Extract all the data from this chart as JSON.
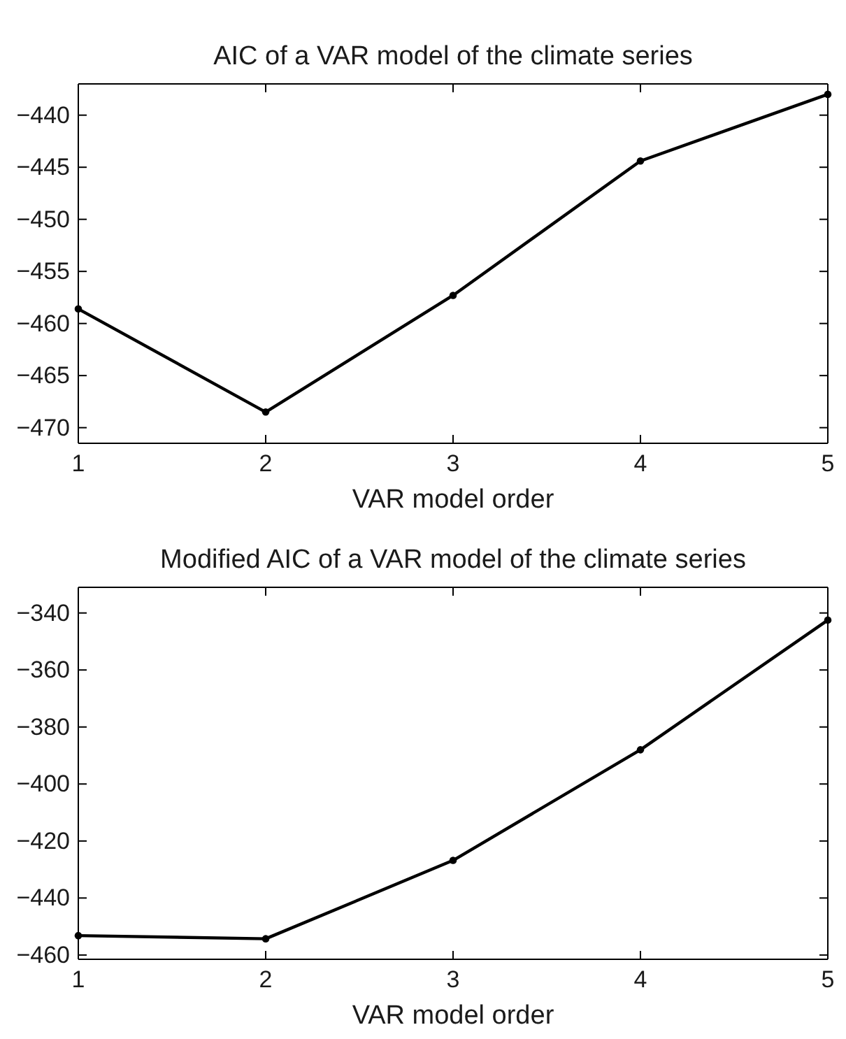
{
  "chart_data": [
    {
      "type": "line",
      "title": "AIC of a VAR model of the climate series",
      "xlabel": "VAR model order",
      "x": [
        1,
        2,
        3,
        4,
        5
      ],
      "xlim": [
        1,
        5
      ],
      "xticks": [
        1,
        2,
        3,
        4,
        5
      ],
      "ylim": [
        -471.5,
        -437
      ],
      "yticks": [
        -470,
        -465,
        -460,
        -455,
        -450,
        -445,
        -440
      ],
      "grid": false,
      "marker": "circle",
      "line_style": "solid",
      "series": [
        {
          "color": "#000000",
          "values": [
            -458.6,
            -468.5,
            -457.3,
            -444.4,
            -438.0
          ]
        }
      ]
    },
    {
      "type": "line",
      "title": "Modified AIC of a VAR model of the climate series",
      "xlabel": "VAR model order",
      "x": [
        1,
        2,
        3,
        4,
        5
      ],
      "xlim": [
        1,
        5
      ],
      "xticks": [
        1,
        2,
        3,
        4,
        5
      ],
      "ylim": [
        -461.5,
        -331
      ],
      "yticks": [
        -460,
        -440,
        -420,
        -400,
        -380,
        -360,
        -340
      ],
      "grid": false,
      "marker": "circle",
      "line_style": "solid",
      "series": [
        {
          "color": "#000000",
          "values": [
            -453.2,
            -454.3,
            -426.8,
            -388.0,
            -342.5
          ]
        }
      ]
    }
  ]
}
